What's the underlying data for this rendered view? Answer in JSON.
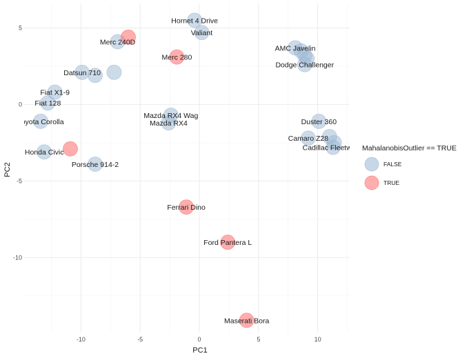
{
  "chart_data": {
    "type": "scatter",
    "title": "",
    "xlabel": "PC1",
    "ylabel": "PC2",
    "xlim": [
      -14.8,
      12.7
    ],
    "ylim": [
      -14.9,
      6.6
    ],
    "x_ticks": [
      -10,
      -5,
      0,
      5,
      10
    ],
    "y_ticks": [
      5,
      0,
      -5,
      -10
    ],
    "x_tick_labels": [
      "-10",
      "-5",
      "0",
      "5",
      "10"
    ],
    "y_tick_labels": [
      "5",
      "0",
      "-5",
      "-10"
    ],
    "grid": true,
    "legend": {
      "title": "MahalanobisOutlier == TRUE",
      "position": "right",
      "entries": [
        {
          "label": "FALSE",
          "color": "#9bb7d4"
        },
        {
          "label": "TRUE",
          "color": "#ff6b6b"
        }
      ]
    },
    "colors": {
      "FALSE": "#9bb7d4",
      "TRUE": "#ff6b6b"
    },
    "points": [
      {
        "label": "Hornet 4 Drive",
        "x": -0.4,
        "y": 5.5,
        "outlier": false
      },
      {
        "label": "Valiant",
        "x": 0.2,
        "y": 4.7,
        "outlier": false
      },
      {
        "label": "Merc 240D",
        "x": -6.9,
        "y": 4.1,
        "outlier": false
      },
      {
        "label": "",
        "x": -6.0,
        "y": 4.4,
        "outlier": true
      },
      {
        "label": "Merc 280",
        "x": -1.9,
        "y": 3.1,
        "outlier": true
      },
      {
        "label": "AMC Javelin",
        "x": 8.1,
        "y": 3.7,
        "outlier": false
      },
      {
        "label": "",
        "x": 8.6,
        "y": 3.5,
        "outlier": false
      },
      {
        "label": "",
        "x": 8.9,
        "y": 3.2,
        "outlier": false
      },
      {
        "label": "",
        "x": 9.1,
        "y": 3.0,
        "outlier": false
      },
      {
        "label": "Dodge Challenger",
        "x": 8.9,
        "y": 2.6,
        "outlier": false
      },
      {
        "label": "Datsun 710",
        "x": -9.9,
        "y": 2.1,
        "outlier": false
      },
      {
        "label": "",
        "x": -8.8,
        "y": 1.9,
        "outlier": false
      },
      {
        "label": "",
        "x": -7.2,
        "y": 2.1,
        "outlier": false
      },
      {
        "label": "Fiat X1-9",
        "x": -12.2,
        "y": 0.8,
        "outlier": false
      },
      {
        "label": "Fiat 128",
        "x": -12.8,
        "y": 0.1,
        "outlier": false
      },
      {
        "label": "Toyota Corolla",
        "x": -13.4,
        "y": -1.1,
        "outlier": false
      },
      {
        "label": "Mazda RX4 Wag",
        "x": -2.4,
        "y": -0.7,
        "outlier": false
      },
      {
        "label": "Mazda RX4",
        "x": -2.6,
        "y": -1.2,
        "outlier": false
      },
      {
        "label": "Duster 360",
        "x": 10.1,
        "y": -1.1,
        "outlier": false
      },
      {
        "label": "Camaro Z28",
        "x": 9.2,
        "y": -2.2,
        "outlier": false
      },
      {
        "label": "",
        "x": 11.0,
        "y": -2.1,
        "outlier": false
      },
      {
        "label": "Cadillac Fleetwood",
        "x": 11.3,
        "y": -2.8,
        "outlier": false
      },
      {
        "label": "",
        "x": 11.4,
        "y": -2.5,
        "outlier": false
      },
      {
        "label": "Honda Civic",
        "x": -13.1,
        "y": -3.1,
        "outlier": false
      },
      {
        "label": "",
        "x": -10.9,
        "y": -2.9,
        "outlier": true
      },
      {
        "label": "Porsche 914-2",
        "x": -8.8,
        "y": -3.9,
        "outlier": false
      },
      {
        "label": "Ferrari Dino",
        "x": -1.1,
        "y": -6.7,
        "outlier": true
      },
      {
        "label": "Ford Pantera L",
        "x": 2.4,
        "y": -9.0,
        "outlier": true
      },
      {
        "label": "Maserati Bora",
        "x": 4.0,
        "y": -14.1,
        "outlier": true
      }
    ]
  }
}
